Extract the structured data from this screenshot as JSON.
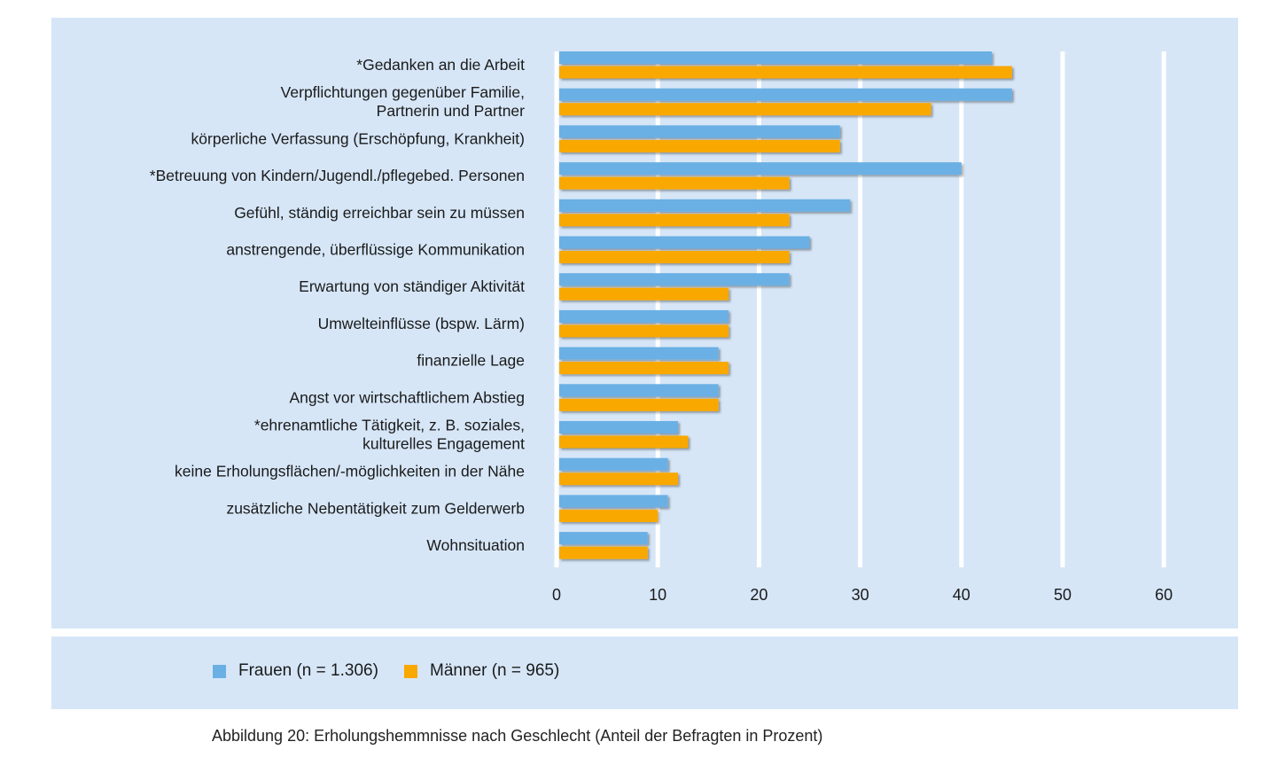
{
  "chart_data": {
    "type": "bar",
    "orientation": "horizontal",
    "categories": [
      "*Gedanken an die Arbeit",
      "Verpflichtungen gegenüber Familie, Partnerin und Partner",
      "körperliche Verfassung (Erschöpfung, Krankheit)",
      "*Betreuung von Kindern/Jugendl./pflegebed. Personen",
      "Gefühl, ständig erreichbar sein zu müssen",
      "anstrengende, überflüssige Kommunikation",
      "Erwartung von ständiger Aktivität",
      "Umwelteinflüsse (bspw.  Lärm)",
      "finanzielle Lage",
      "Angst vor wirtschaftlichem Abstieg",
      "*ehrenamtliche Tätigkeit, z. B. soziales, kulturelles Engagement",
      "keine Erholungsflächen/-möglichkeiten in der Nähe",
      "zusätzliche Nebentätigkeit zum Gelderwerb",
      "Wohnsituation"
    ],
    "category_lines": [
      [
        "*Gedanken an die Arbeit"
      ],
      [
        "Verpflichtungen gegenüber Familie,",
        "Partnerin und Partner"
      ],
      [
        "körperliche Verfassung (Erschöpfung, Krankheit)"
      ],
      [
        "*Betreuung von Kindern/Jugendl./pflegebed. Personen"
      ],
      [
        "Gefühl, ständig erreichbar sein zu müssen"
      ],
      [
        "anstrengende, überflüssige Kommunikation"
      ],
      [
        "Erwartung von ständiger Aktivität"
      ],
      [
        "Umwelteinflüsse (bspw.  Lärm)"
      ],
      [
        "finanzielle Lage"
      ],
      [
        "Angst vor wirtschaftlichem Abstieg"
      ],
      [
        "*ehrenamtliche Tätigkeit, z. B. soziales,",
        "kulturelles Engagement"
      ],
      [
        "keine Erholungsflächen/-möglichkeiten in der Nähe"
      ],
      [
        "zusätzliche Nebentätigkeit zum Gelderwerb"
      ],
      [
        "Wohnsituation"
      ]
    ],
    "series": [
      {
        "name": "Frauen (n = 1.306)",
        "color": "#6ab0e4",
        "values": [
          43,
          45,
          28,
          40,
          29,
          25,
          23,
          17,
          16,
          16,
          12,
          11,
          11,
          9
        ]
      },
      {
        "name": "Männer (n = 965)",
        "color": "#f9a800",
        "values": [
          45,
          37,
          28,
          23,
          23,
          23,
          17,
          17,
          17,
          16,
          13,
          12,
          10,
          9
        ]
      }
    ],
    "xlim": [
      0,
      60
    ],
    "xticks": [
      0,
      10,
      20,
      30,
      40,
      50,
      60
    ],
    "grid": true,
    "legend_position": "bottom",
    "caption": "Abbildung 20: Erholungshemmnisse nach Geschlecht (Anteil der Befragten in Prozent)"
  },
  "legend": {
    "frauen_label": "Frauen (n = 1.306)",
    "maenner_label": "Männer (n = 965)",
    "frauen_color": "#6ab0e4",
    "maenner_color": "#f9a800"
  },
  "caption": "Abbildung 20: Erholungshemmnisse nach Geschlecht (Anteil der Befragten in Prozent)"
}
